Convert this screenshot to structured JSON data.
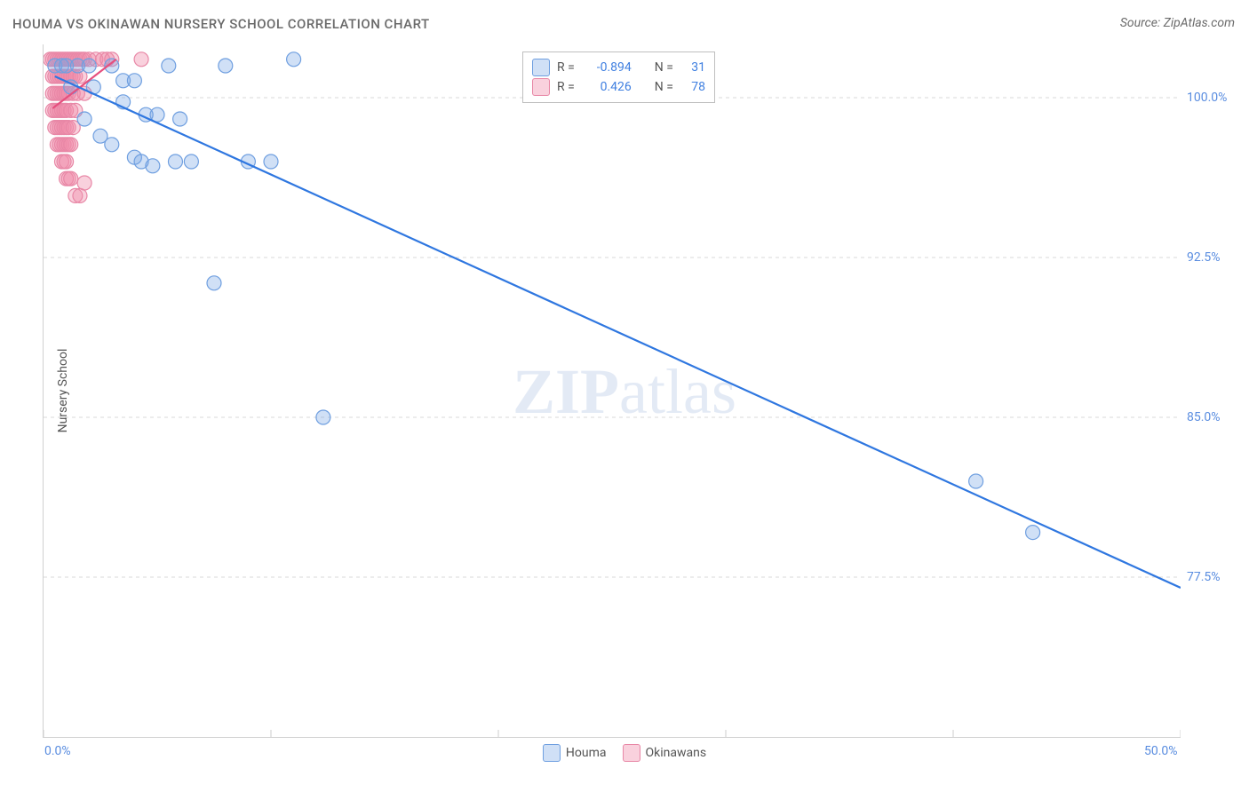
{
  "title": "HOUMA VS OKINAWAN NURSERY SCHOOL CORRELATION CHART",
  "source": "Source: ZipAtlas.com",
  "ylabel": "Nursery School",
  "watermark_a": "ZIP",
  "watermark_b": "atlas",
  "chart": {
    "type": "scatter",
    "xlim": [
      0,
      50
    ],
    "ylim": [
      70,
      102.5
    ],
    "xticks": [
      0,
      10,
      20,
      30,
      40,
      50
    ],
    "xtick_labels": [
      "0.0%",
      "",
      "",
      "",
      "",
      "50.0%"
    ],
    "ygrid": [
      77.5,
      85.0,
      92.5,
      100.0
    ],
    "ytick_labels": [
      "77.5%",
      "85.0%",
      "92.5%",
      "100.0%"
    ],
    "grid_color": "#d8d8d8",
    "axis_color": "#cccccc",
    "background_color": "#ffffff",
    "marker_radius": 8,
    "marker_stroke_width": 1.2,
    "line_width": 2.2,
    "series": [
      {
        "name": "Houma",
        "color_fill": "rgba(120,165,230,0.35)",
        "color_stroke": "#6f9fe0",
        "line_color": "#2f77e0",
        "R": "-0.894",
        "N": "31",
        "regression": {
          "x1": 0.5,
          "y1": 101.0,
          "x2": 50.0,
          "y2": 77.0
        },
        "points": [
          [
            0.5,
            101.5
          ],
          [
            0.8,
            101.5
          ],
          [
            1.0,
            101.5
          ],
          [
            1.5,
            101.5
          ],
          [
            2.0,
            101.5
          ],
          [
            1.2,
            100.5
          ],
          [
            2.2,
            100.5
          ],
          [
            3.0,
            101.5
          ],
          [
            3.5,
            100.8
          ],
          [
            4.0,
            100.8
          ],
          [
            5.5,
            101.5
          ],
          [
            3.5,
            99.8
          ],
          [
            4.5,
            99.2
          ],
          [
            5.0,
            99.2
          ],
          [
            1.8,
            99.0
          ],
          [
            2.5,
            98.2
          ],
          [
            3.0,
            97.8
          ],
          [
            4.0,
            97.2
          ],
          [
            6.0,
            99.0
          ],
          [
            5.8,
            97.0
          ],
          [
            6.5,
            97.0
          ],
          [
            4.3,
            97.0
          ],
          [
            4.8,
            96.8
          ],
          [
            8.0,
            101.5
          ],
          [
            11.0,
            101.8
          ],
          [
            9.0,
            97.0
          ],
          [
            10.0,
            97.0
          ],
          [
            7.5,
            91.3
          ],
          [
            12.3,
            85.0
          ],
          [
            41.0,
            82.0
          ],
          [
            43.5,
            79.6
          ]
        ]
      },
      {
        "name": "Okinawans",
        "color_fill": "rgba(240,140,170,0.40)",
        "color_stroke": "#e887a6",
        "line_color": "#e64f7e",
        "R": " 0.426",
        "N": "78",
        "regression": {
          "x1": 0.4,
          "y1": 99.5,
          "x2": 3.2,
          "y2": 101.8
        },
        "points": [
          [
            0.3,
            101.8
          ],
          [
            0.4,
            101.8
          ],
          [
            0.5,
            101.8
          ],
          [
            0.6,
            101.8
          ],
          [
            0.7,
            101.8
          ],
          [
            0.8,
            101.8
          ],
          [
            0.9,
            101.8
          ],
          [
            1.0,
            101.8
          ],
          [
            1.1,
            101.8
          ],
          [
            1.2,
            101.8
          ],
          [
            1.3,
            101.8
          ],
          [
            1.4,
            101.8
          ],
          [
            1.5,
            101.8
          ],
          [
            1.6,
            101.8
          ],
          [
            1.7,
            101.8
          ],
          [
            1.8,
            101.8
          ],
          [
            2.0,
            101.8
          ],
          [
            2.3,
            101.8
          ],
          [
            2.6,
            101.8
          ],
          [
            2.8,
            101.8
          ],
          [
            3.0,
            101.8
          ],
          [
            4.3,
            101.8
          ],
          [
            0.4,
            101.0
          ],
          [
            0.5,
            101.0
          ],
          [
            0.6,
            101.0
          ],
          [
            0.7,
            101.0
          ],
          [
            0.8,
            101.0
          ],
          [
            0.9,
            101.0
          ],
          [
            1.0,
            101.0
          ],
          [
            1.1,
            101.0
          ],
          [
            1.2,
            101.0
          ],
          [
            1.3,
            101.0
          ],
          [
            1.4,
            101.0
          ],
          [
            1.6,
            101.0
          ],
          [
            0.4,
            100.2
          ],
          [
            0.5,
            100.2
          ],
          [
            0.6,
            100.2
          ],
          [
            0.7,
            100.2
          ],
          [
            0.8,
            100.2
          ],
          [
            0.9,
            100.2
          ],
          [
            1.0,
            100.2
          ],
          [
            1.1,
            100.2
          ],
          [
            1.3,
            100.2
          ],
          [
            1.5,
            100.2
          ],
          [
            1.8,
            100.2
          ],
          [
            0.4,
            99.4
          ],
          [
            0.5,
            99.4
          ],
          [
            0.6,
            99.4
          ],
          [
            0.7,
            99.4
          ],
          [
            0.8,
            99.4
          ],
          [
            0.9,
            99.4
          ],
          [
            1.0,
            99.4
          ],
          [
            1.2,
            99.4
          ],
          [
            1.4,
            99.4
          ],
          [
            0.5,
            98.6
          ],
          [
            0.6,
            98.6
          ],
          [
            0.7,
            98.6
          ],
          [
            0.8,
            98.6
          ],
          [
            0.9,
            98.6
          ],
          [
            1.0,
            98.6
          ],
          [
            1.1,
            98.6
          ],
          [
            1.3,
            98.6
          ],
          [
            0.6,
            97.8
          ],
          [
            0.7,
            97.8
          ],
          [
            0.8,
            97.8
          ],
          [
            0.9,
            97.8
          ],
          [
            1.0,
            97.8
          ],
          [
            1.1,
            97.8
          ],
          [
            1.2,
            97.8
          ],
          [
            0.8,
            97.0
          ],
          [
            0.9,
            97.0
          ],
          [
            1.0,
            97.0
          ],
          [
            1.0,
            96.2
          ],
          [
            1.1,
            96.2
          ],
          [
            1.2,
            96.2
          ],
          [
            1.4,
            95.4
          ],
          [
            1.6,
            95.4
          ],
          [
            1.8,
            96.0
          ]
        ]
      }
    ]
  },
  "stats_legend": {
    "R_label": "R =",
    "N_label": "N ="
  },
  "bottom_legend": {
    "items": [
      "Houma",
      "Okinawans"
    ]
  }
}
